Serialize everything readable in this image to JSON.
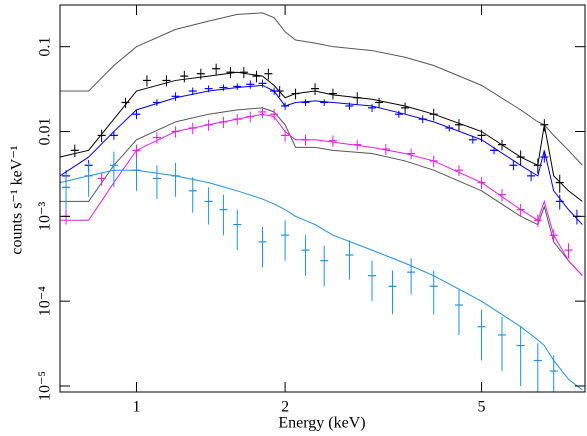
{
  "chart_data": {
    "type": "spectrum",
    "x_label": "Energy (keV)",
    "y_label": "counts s⁻¹ keV⁻¹",
    "x_log": true,
    "y_log": true,
    "xlim": [
      0.7,
      8.1
    ],
    "ylim": [
      8.5e-06,
      0.31
    ],
    "xticks": [
      1,
      2,
      5
    ],
    "yticks": [
      0.1,
      0.01,
      {
        "value": 0.001,
        "label": "10⁻³"
      },
      {
        "value": 0.0001,
        "label": "10⁻⁴"
      },
      {
        "value": 1e-05,
        "label": "10⁻⁵"
      }
    ],
    "series": [
      {
        "style": "step",
        "color": "#555555",
        "x": [
          0.7,
          0.8,
          0.9,
          1.0,
          1.2,
          1.4,
          1.6,
          1.8,
          1.9,
          2.0,
          2.1,
          2.3,
          2.5,
          3.0,
          3.5,
          4.0,
          5.0,
          6.0,
          6.5,
          6.7,
          7.0,
          7.5,
          8.0
        ],
        "values": [
          0.03,
          0.03,
          0.06,
          0.1,
          0.16,
          0.2,
          0.24,
          0.25,
          0.22,
          0.15,
          0.12,
          0.11,
          0.1,
          0.09,
          0.075,
          0.06,
          0.035,
          0.018,
          0.013,
          0.012,
          0.009,
          0.006,
          0.004
        ]
      },
      {
        "style": "step",
        "color": "#555555",
        "x": [
          0.7,
          0.8,
          0.9,
          1.0,
          1.2,
          1.4,
          1.6,
          1.8,
          1.9,
          2.0,
          2.1,
          2.3,
          2.5,
          3.0,
          3.5,
          4.0,
          5.0,
          6.0,
          6.5,
          6.7,
          7.0,
          7.5,
          8.0
        ],
        "values": [
          0.0015,
          0.0015,
          0.004,
          0.008,
          0.013,
          0.016,
          0.018,
          0.019,
          0.017,
          0.012,
          0.0065,
          0.0065,
          0.006,
          0.0055,
          0.0045,
          0.0035,
          0.002,
          0.001,
          0.0008,
          0.0013,
          0.0005,
          0.0003,
          0.0002
        ]
      },
      {
        "style": "errorbar",
        "color": "#000000",
        "x": [
          0.75,
          0.85,
          0.95,
          1.05,
          1.15,
          1.25,
          1.35,
          1.45,
          1.55,
          1.65,
          1.75,
          1.85,
          1.95,
          2.1,
          2.3,
          2.5,
          2.8,
          3.1,
          3.5,
          4.0,
          4.5,
          5.0,
          5.5,
          6.0,
          6.5,
          6.7,
          7.2
        ],
        "values": [
          0.006,
          0.009,
          0.022,
          0.04,
          0.04,
          0.045,
          0.048,
          0.055,
          0.05,
          0.05,
          0.045,
          0.048,
          0.03,
          0.028,
          0.032,
          0.028,
          0.025,
          0.022,
          0.019,
          0.016,
          0.012,
          0.009,
          0.007,
          0.005,
          0.004,
          0.012,
          0.0025
        ],
        "yerr": [
          0.001,
          0.0015,
          0.003,
          0.006,
          0.006,
          0.007,
          0.007,
          0.008,
          0.0075,
          0.0075,
          0.007,
          0.007,
          0.0045,
          0.004,
          0.005,
          0.004,
          0.004,
          0.003,
          0.003,
          0.0025,
          0.002,
          0.0015,
          0.001,
          0.001,
          0.0008,
          0.002,
          0.0006
        ]
      },
      {
        "style": "step",
        "color": "#000000",
        "x": [
          0.7,
          0.8,
          0.9,
          1.0,
          1.2,
          1.4,
          1.6,
          1.8,
          1.9,
          2.0,
          2.1,
          2.3,
          2.5,
          3.0,
          3.5,
          4.0,
          5.0,
          6.0,
          6.5,
          6.7,
          7.0,
          7.5,
          8.0
        ],
        "values": [
          0.005,
          0.006,
          0.014,
          0.03,
          0.04,
          0.045,
          0.05,
          0.045,
          0.035,
          0.025,
          0.028,
          0.03,
          0.027,
          0.024,
          0.02,
          0.016,
          0.01,
          0.005,
          0.004,
          0.012,
          0.003,
          0.002,
          0.0015
        ]
      },
      {
        "style": "errorbar",
        "color": "#0000ee",
        "x": [
          0.72,
          0.8,
          0.9,
          1.0,
          1.1,
          1.2,
          1.3,
          1.4,
          1.5,
          1.6,
          1.7,
          1.8,
          1.9,
          2.0,
          2.2,
          2.4,
          2.7,
          3.0,
          3.4,
          3.8,
          4.3,
          4.8,
          5.3,
          5.8,
          6.3,
          6.7,
          7.2,
          7.8
        ],
        "values": [
          0.003,
          0.004,
          0.009,
          0.016,
          0.022,
          0.026,
          0.03,
          0.032,
          0.033,
          0.034,
          0.036,
          0.037,
          0.03,
          0.02,
          0.022,
          0.022,
          0.02,
          0.019,
          0.016,
          0.014,
          0.011,
          0.008,
          0.006,
          0.004,
          0.003,
          0.005,
          0.0015,
          0.001
        ],
        "yerr": [
          0.0005,
          0.0006,
          0.001,
          0.002,
          0.002,
          0.003,
          0.003,
          0.003,
          0.003,
          0.003,
          0.004,
          0.004,
          0.003,
          0.002,
          0.002,
          0.002,
          0.002,
          0.002,
          0.0015,
          0.0015,
          0.001,
          0.0008,
          0.0006,
          0.0005,
          0.0004,
          0.0007,
          0.0003,
          0.0002
        ]
      },
      {
        "style": "step",
        "color": "#0000ee",
        "x": [
          0.7,
          0.8,
          0.9,
          1.0,
          1.2,
          1.4,
          1.6,
          1.8,
          1.9,
          2.0,
          2.1,
          2.3,
          2.5,
          3.0,
          3.5,
          4.0,
          5.0,
          6.0,
          6.5,
          6.7,
          7.0,
          7.5,
          8.0
        ],
        "values": [
          0.003,
          0.005,
          0.01,
          0.018,
          0.025,
          0.03,
          0.033,
          0.035,
          0.03,
          0.02,
          0.022,
          0.023,
          0.022,
          0.02,
          0.016,
          0.013,
          0.008,
          0.004,
          0.003,
          0.006,
          0.002,
          0.0012,
          0.0008
        ]
      },
      {
        "style": "errorbar",
        "color": "#e020e0",
        "x": [
          0.72,
          0.85,
          1.0,
          1.1,
          1.2,
          1.3,
          1.4,
          1.5,
          1.6,
          1.7,
          1.8,
          1.9,
          2.0,
          2.2,
          2.5,
          2.8,
          3.2,
          3.6,
          4.0,
          4.5,
          5.0,
          5.5,
          6.0,
          6.5,
          7.0,
          7.5
        ],
        "values": [
          0.001,
          0.0028,
          0.006,
          0.0085,
          0.01,
          0.011,
          0.012,
          0.013,
          0.014,
          0.015,
          0.017,
          0.016,
          0.009,
          0.008,
          0.0078,
          0.007,
          0.0062,
          0.0055,
          0.0045,
          0.0035,
          0.0025,
          0.0018,
          0.0012,
          0.0009,
          0.0006,
          0.0004
        ],
        "yerr": [
          0.0002,
          0.0005,
          0.001,
          0.0013,
          0.0015,
          0.0017,
          0.0018,
          0.002,
          0.002,
          0.0022,
          0.0025,
          0.0024,
          0.0014,
          0.0012,
          0.0012,
          0.001,
          0.0009,
          0.0008,
          0.0007,
          0.0005,
          0.0004,
          0.0003,
          0.0002,
          0.00015,
          0.0001,
          8e-05
        ]
      },
      {
        "style": "step",
        "color": "#e020e0",
        "x": [
          0.7,
          0.8,
          0.9,
          1.0,
          1.2,
          1.4,
          1.6,
          1.8,
          1.9,
          2.0,
          2.1,
          2.3,
          2.5,
          3.0,
          3.5,
          4.0,
          5.0,
          6.0,
          6.5,
          6.7,
          7.0,
          7.5,
          8.0
        ],
        "values": [
          0.0009,
          0.0009,
          0.0025,
          0.006,
          0.01,
          0.012,
          0.014,
          0.016,
          0.015,
          0.01,
          0.008,
          0.008,
          0.0075,
          0.0065,
          0.0055,
          0.0045,
          0.0025,
          0.0012,
          0.0009,
          0.0015,
          0.0006,
          0.0003,
          0.0002
        ]
      },
      {
        "style": "errorbar",
        "color": "#2090e0",
        "x": [
          0.72,
          0.8,
          0.9,
          1.0,
          1.1,
          1.2,
          1.3,
          1.4,
          1.5,
          1.6,
          1.8,
          2.0,
          2.2,
          2.4,
          2.7,
          3.0,
          3.3,
          3.6,
          4.0,
          4.5,
          5.0,
          5.5,
          6.0,
          6.5,
          7.0
        ],
        "values": [
          0.0022,
          0.003,
          0.004,
          0.0035,
          0.0028,
          0.003,
          0.002,
          0.0015,
          0.0012,
          0.0008,
          0.0005,
          0.0006,
          0.0004,
          0.0003,
          0.00035,
          0.0002,
          0.00015,
          0.00022,
          0.00015,
          9e-05,
          5e-05,
          4e-05,
          3e-05,
          2e-05,
          1.5e-05
        ],
        "yerr": [
          0.001,
          0.0013,
          0.0018,
          0.0015,
          0.0012,
          0.0013,
          0.0009,
          0.0007,
          0.0006,
          0.0004,
          0.00025,
          0.0003,
          0.0002,
          0.00015,
          0.00017,
          0.0001,
          8e-05,
          0.0001,
          8e-05,
          5e-05,
          3e-05,
          2.5e-05,
          2e-05,
          1.2e-05,
          8e-06
        ]
      },
      {
        "style": "step",
        "color": "#2090e0",
        "x": [
          0.7,
          0.8,
          0.9,
          1.0,
          1.2,
          1.4,
          1.6,
          1.8,
          1.9,
          2.0,
          2.1,
          2.3,
          2.5,
          3.0,
          3.5,
          4.0,
          5.0,
          6.0,
          6.5,
          6.7,
          7.0,
          7.5,
          8.0
        ],
        "values": [
          0.0025,
          0.003,
          0.0035,
          0.0035,
          0.003,
          0.0025,
          0.002,
          0.0016,
          0.0014,
          0.0012,
          0.001,
          0.0008,
          0.0006,
          0.0004,
          0.00028,
          0.0002,
          0.0001,
          5e-05,
          3.5e-05,
          3e-05,
          2e-05,
          1.2e-05,
          9e-06
        ]
      }
    ]
  }
}
